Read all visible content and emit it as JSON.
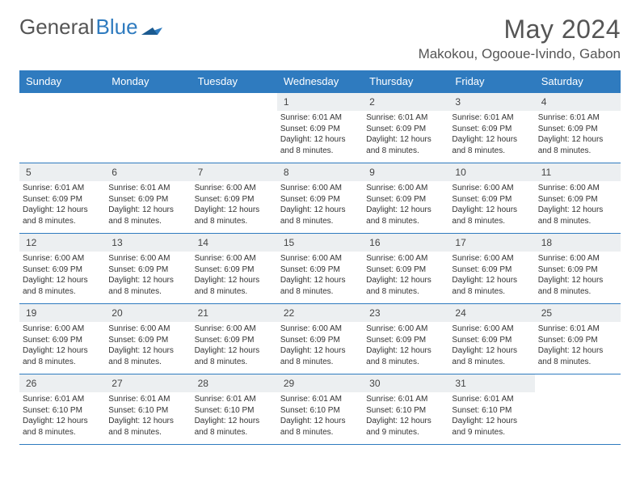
{
  "logo": {
    "text_gray": "General",
    "text_blue": "Blue"
  },
  "title": "May 2024",
  "location": "Makokou, Ogooue-Ivindo, Gabon",
  "colors": {
    "header_bg": "#2f7bbf",
    "header_text": "#ffffff",
    "daynum_bg": "#eceff1",
    "border": "#2f7bbf",
    "body_text": "#333333",
    "title_text": "#555555"
  },
  "day_names": [
    "Sunday",
    "Monday",
    "Tuesday",
    "Wednesday",
    "Thursday",
    "Friday",
    "Saturday"
  ],
  "weeks": [
    [
      {
        "n": "",
        "sr": "",
        "ss": "",
        "dl": ""
      },
      {
        "n": "",
        "sr": "",
        "ss": "",
        "dl": ""
      },
      {
        "n": "",
        "sr": "",
        "ss": "",
        "dl": ""
      },
      {
        "n": "1",
        "sr": "Sunrise: 6:01 AM",
        "ss": "Sunset: 6:09 PM",
        "dl": "Daylight: 12 hours and 8 minutes."
      },
      {
        "n": "2",
        "sr": "Sunrise: 6:01 AM",
        "ss": "Sunset: 6:09 PM",
        "dl": "Daylight: 12 hours and 8 minutes."
      },
      {
        "n": "3",
        "sr": "Sunrise: 6:01 AM",
        "ss": "Sunset: 6:09 PM",
        "dl": "Daylight: 12 hours and 8 minutes."
      },
      {
        "n": "4",
        "sr": "Sunrise: 6:01 AM",
        "ss": "Sunset: 6:09 PM",
        "dl": "Daylight: 12 hours and 8 minutes."
      }
    ],
    [
      {
        "n": "5",
        "sr": "Sunrise: 6:01 AM",
        "ss": "Sunset: 6:09 PM",
        "dl": "Daylight: 12 hours and 8 minutes."
      },
      {
        "n": "6",
        "sr": "Sunrise: 6:01 AM",
        "ss": "Sunset: 6:09 PM",
        "dl": "Daylight: 12 hours and 8 minutes."
      },
      {
        "n": "7",
        "sr": "Sunrise: 6:00 AM",
        "ss": "Sunset: 6:09 PM",
        "dl": "Daylight: 12 hours and 8 minutes."
      },
      {
        "n": "8",
        "sr": "Sunrise: 6:00 AM",
        "ss": "Sunset: 6:09 PM",
        "dl": "Daylight: 12 hours and 8 minutes."
      },
      {
        "n": "9",
        "sr": "Sunrise: 6:00 AM",
        "ss": "Sunset: 6:09 PM",
        "dl": "Daylight: 12 hours and 8 minutes."
      },
      {
        "n": "10",
        "sr": "Sunrise: 6:00 AM",
        "ss": "Sunset: 6:09 PM",
        "dl": "Daylight: 12 hours and 8 minutes."
      },
      {
        "n": "11",
        "sr": "Sunrise: 6:00 AM",
        "ss": "Sunset: 6:09 PM",
        "dl": "Daylight: 12 hours and 8 minutes."
      }
    ],
    [
      {
        "n": "12",
        "sr": "Sunrise: 6:00 AM",
        "ss": "Sunset: 6:09 PM",
        "dl": "Daylight: 12 hours and 8 minutes."
      },
      {
        "n": "13",
        "sr": "Sunrise: 6:00 AM",
        "ss": "Sunset: 6:09 PM",
        "dl": "Daylight: 12 hours and 8 minutes."
      },
      {
        "n": "14",
        "sr": "Sunrise: 6:00 AM",
        "ss": "Sunset: 6:09 PM",
        "dl": "Daylight: 12 hours and 8 minutes."
      },
      {
        "n": "15",
        "sr": "Sunrise: 6:00 AM",
        "ss": "Sunset: 6:09 PM",
        "dl": "Daylight: 12 hours and 8 minutes."
      },
      {
        "n": "16",
        "sr": "Sunrise: 6:00 AM",
        "ss": "Sunset: 6:09 PM",
        "dl": "Daylight: 12 hours and 8 minutes."
      },
      {
        "n": "17",
        "sr": "Sunrise: 6:00 AM",
        "ss": "Sunset: 6:09 PM",
        "dl": "Daylight: 12 hours and 8 minutes."
      },
      {
        "n": "18",
        "sr": "Sunrise: 6:00 AM",
        "ss": "Sunset: 6:09 PM",
        "dl": "Daylight: 12 hours and 8 minutes."
      }
    ],
    [
      {
        "n": "19",
        "sr": "Sunrise: 6:00 AM",
        "ss": "Sunset: 6:09 PM",
        "dl": "Daylight: 12 hours and 8 minutes."
      },
      {
        "n": "20",
        "sr": "Sunrise: 6:00 AM",
        "ss": "Sunset: 6:09 PM",
        "dl": "Daylight: 12 hours and 8 minutes."
      },
      {
        "n": "21",
        "sr": "Sunrise: 6:00 AM",
        "ss": "Sunset: 6:09 PM",
        "dl": "Daylight: 12 hours and 8 minutes."
      },
      {
        "n": "22",
        "sr": "Sunrise: 6:00 AM",
        "ss": "Sunset: 6:09 PM",
        "dl": "Daylight: 12 hours and 8 minutes."
      },
      {
        "n": "23",
        "sr": "Sunrise: 6:00 AM",
        "ss": "Sunset: 6:09 PM",
        "dl": "Daylight: 12 hours and 8 minutes."
      },
      {
        "n": "24",
        "sr": "Sunrise: 6:00 AM",
        "ss": "Sunset: 6:09 PM",
        "dl": "Daylight: 12 hours and 8 minutes."
      },
      {
        "n": "25",
        "sr": "Sunrise: 6:01 AM",
        "ss": "Sunset: 6:09 PM",
        "dl": "Daylight: 12 hours and 8 minutes."
      }
    ],
    [
      {
        "n": "26",
        "sr": "Sunrise: 6:01 AM",
        "ss": "Sunset: 6:10 PM",
        "dl": "Daylight: 12 hours and 8 minutes."
      },
      {
        "n": "27",
        "sr": "Sunrise: 6:01 AM",
        "ss": "Sunset: 6:10 PM",
        "dl": "Daylight: 12 hours and 8 minutes."
      },
      {
        "n": "28",
        "sr": "Sunrise: 6:01 AM",
        "ss": "Sunset: 6:10 PM",
        "dl": "Daylight: 12 hours and 8 minutes."
      },
      {
        "n": "29",
        "sr": "Sunrise: 6:01 AM",
        "ss": "Sunset: 6:10 PM",
        "dl": "Daylight: 12 hours and 8 minutes."
      },
      {
        "n": "30",
        "sr": "Sunrise: 6:01 AM",
        "ss": "Sunset: 6:10 PM",
        "dl": "Daylight: 12 hours and 9 minutes."
      },
      {
        "n": "31",
        "sr": "Sunrise: 6:01 AM",
        "ss": "Sunset: 6:10 PM",
        "dl": "Daylight: 12 hours and 9 minutes."
      },
      {
        "n": "",
        "sr": "",
        "ss": "",
        "dl": ""
      }
    ]
  ]
}
